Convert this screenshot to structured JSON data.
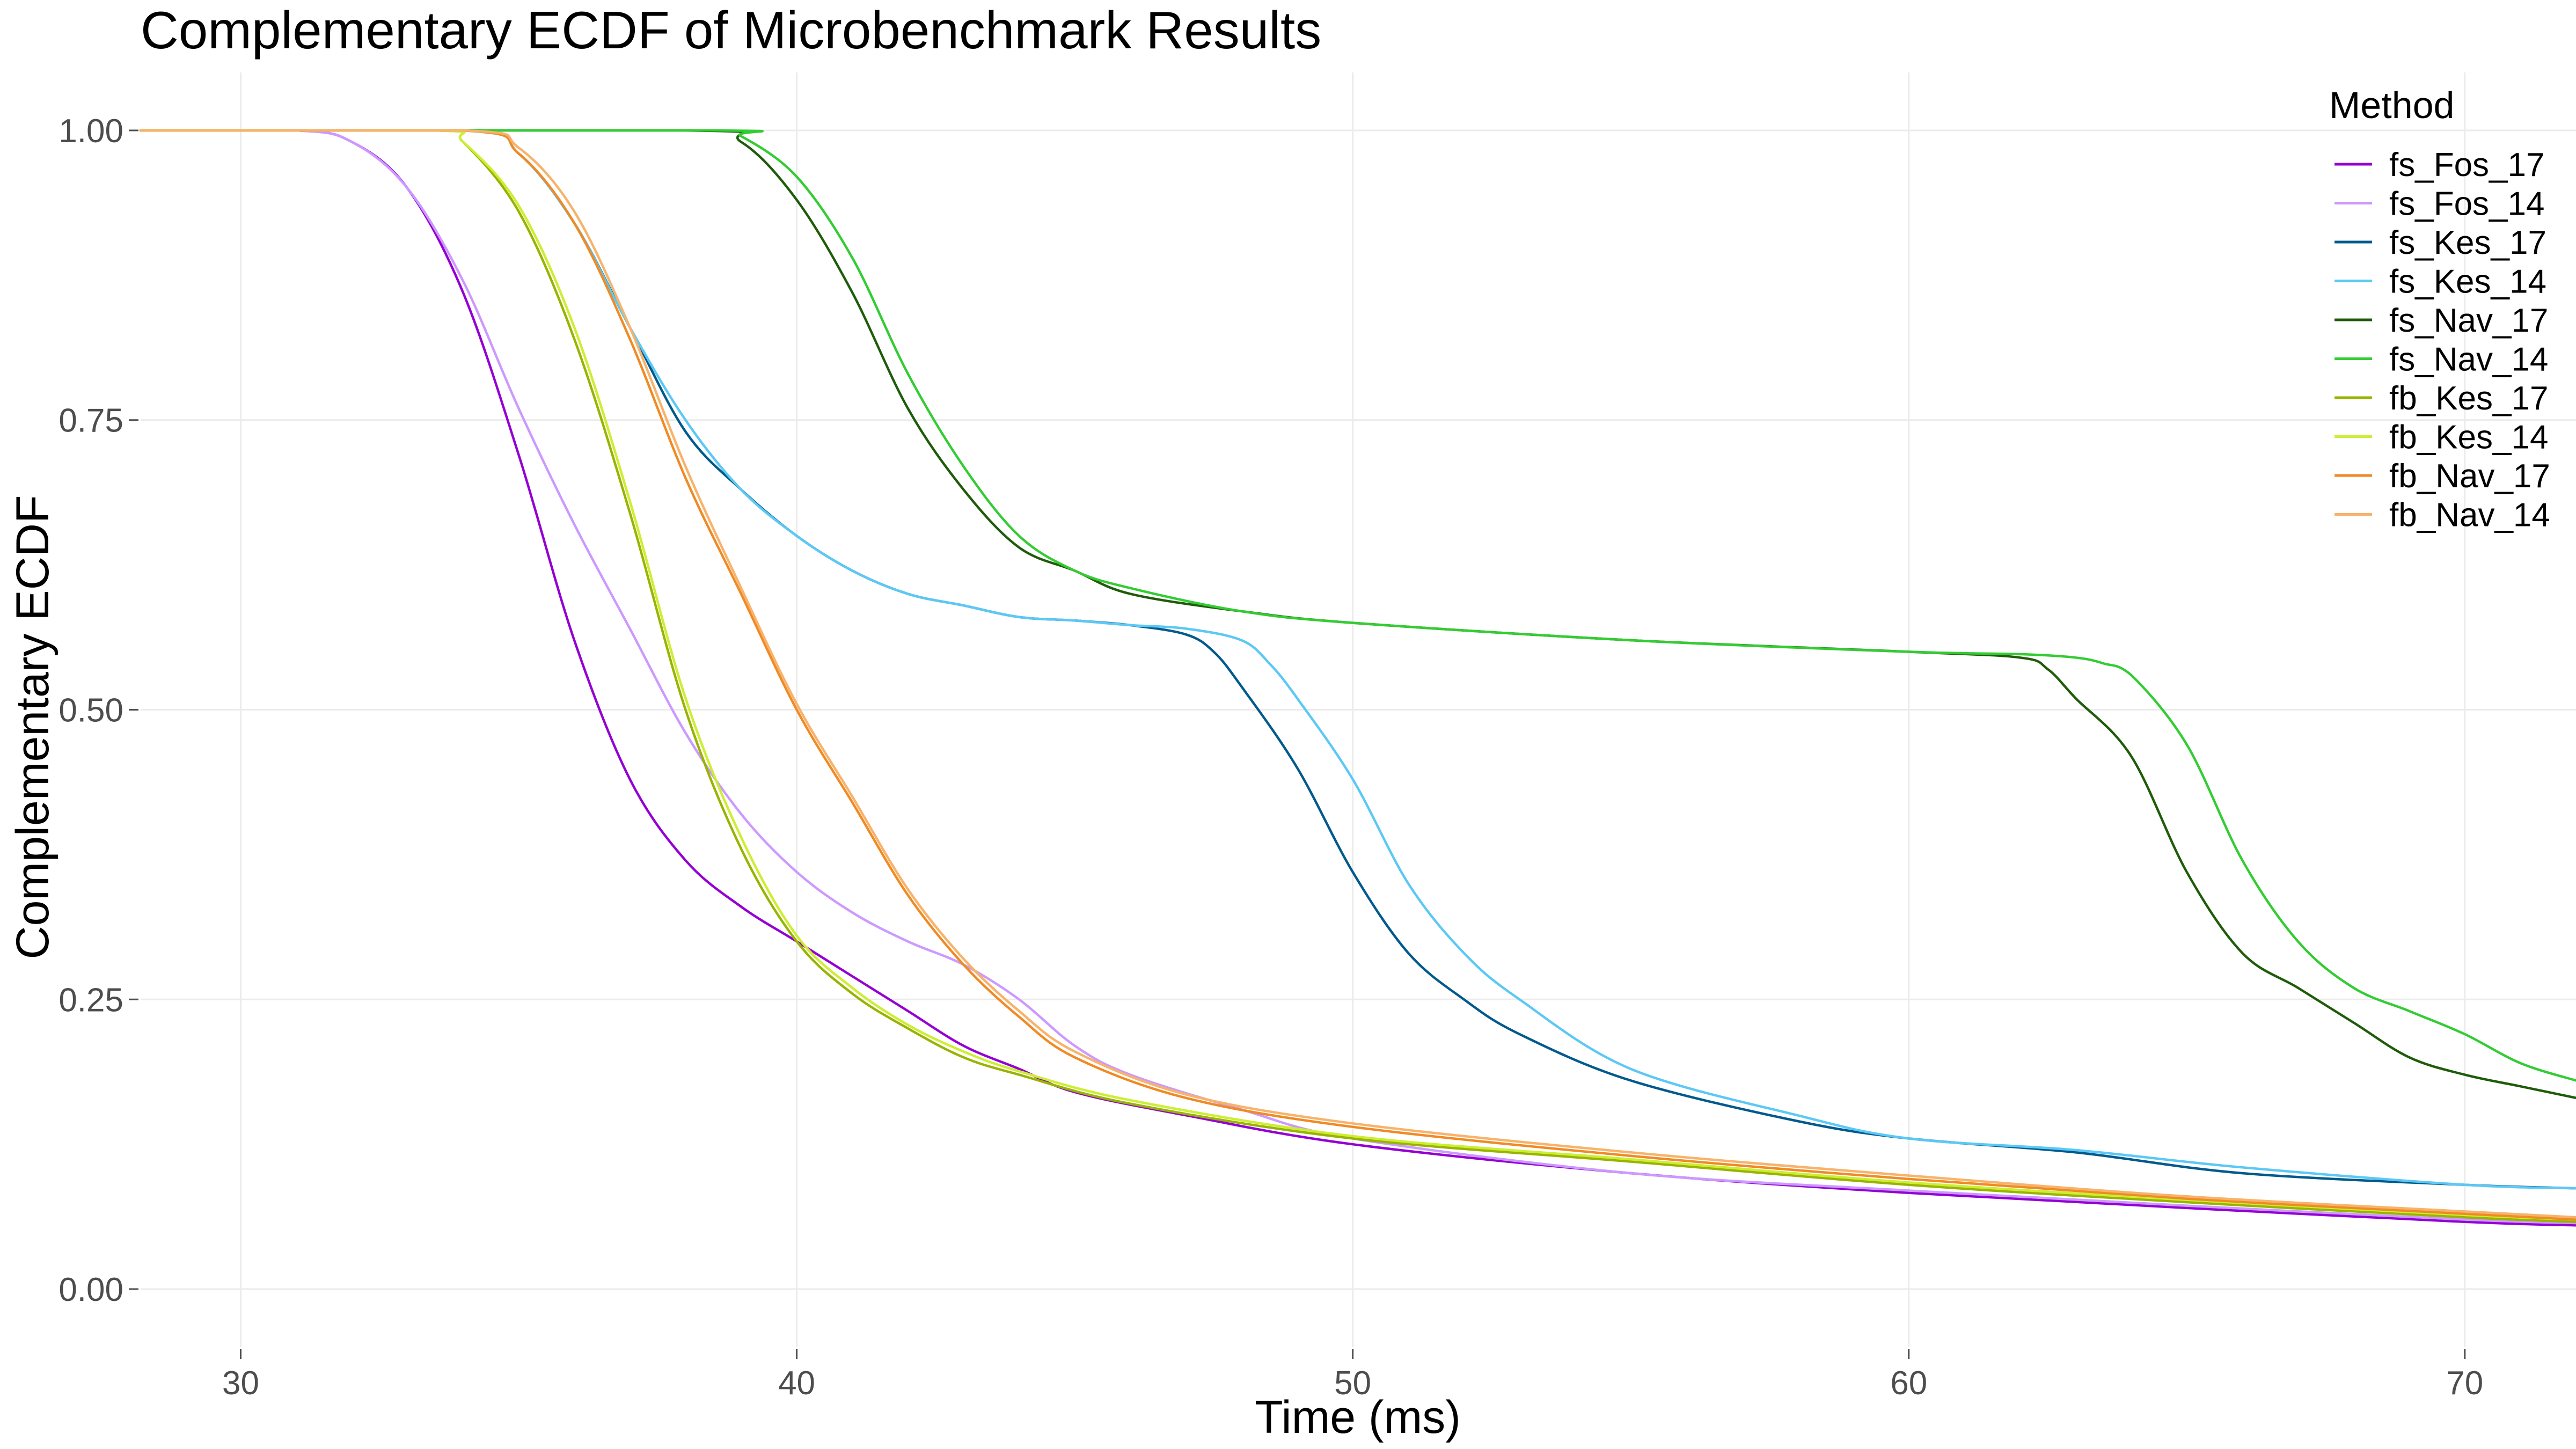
{
  "chart_data": {
    "type": "line",
    "title": "Complementary ECDF of Microbenchmark Results",
    "xlabel": "Time (ms)",
    "ylabel": "Complementary ECDF",
    "xlim": [
      28.2,
      72.0
    ],
    "ylim": [
      -0.05,
      1.05
    ],
    "x_ticks": [
      30,
      40,
      50,
      60,
      70
    ],
    "x_tick_labels": [
      "30",
      "40",
      "50",
      "60",
      "70"
    ],
    "y_ticks": [
      0,
      0.25,
      0.5,
      0.75,
      1.0
    ],
    "y_tick_labels": [
      "0.00",
      "0.25",
      "0.50",
      "0.75",
      "1.00"
    ],
    "grid": true,
    "legend": {
      "title": "Method",
      "position": "right"
    },
    "series": [
      {
        "name": "fs_Fos_17",
        "color": "#9400D3",
        "x": [
          28.2,
          31.0,
          32.0,
          33.0,
          34.0,
          35.0,
          36.0,
          37.0,
          38.0,
          39.0,
          40.0,
          41.0,
          42.0,
          43.0,
          44.0,
          45.0,
          47.0,
          50.0,
          55.0,
          60.0,
          65.0,
          70.0,
          72.0
        ],
        "y": [
          1.0,
          1.0,
          0.99,
          0.95,
          0.86,
          0.72,
          0.56,
          0.44,
          0.37,
          0.33,
          0.3,
          0.27,
          0.24,
          0.21,
          0.19,
          0.17,
          0.15,
          0.125,
          0.1,
          0.083,
          0.07,
          0.058,
          0.055
        ]
      },
      {
        "name": "fs_Fos_14",
        "color": "#CC99FF",
        "x": [
          28.2,
          31.0,
          32.0,
          33.0,
          34.0,
          35.0,
          36.0,
          37.0,
          38.0,
          39.0,
          40.0,
          41.0,
          42.0,
          43.0,
          44.0,
          45.0,
          46.0,
          48.0,
          50.0,
          55.0,
          60.0,
          65.0,
          70.0,
          72.0
        ],
        "y": [
          1.0,
          1.0,
          0.99,
          0.95,
          0.87,
          0.76,
          0.66,
          0.57,
          0.48,
          0.41,
          0.36,
          0.325,
          0.3,
          0.28,
          0.25,
          0.21,
          0.185,
          0.155,
          0.13,
          0.1,
          0.085,
          0.072,
          0.06,
          0.057
        ]
      },
      {
        "name": "fs_Kes_17",
        "color": "#005A8C",
        "x": [
          28.2,
          34.0,
          35.0,
          36.0,
          37.0,
          38.0,
          39.0,
          40.0,
          41.0,
          42.0,
          43.0,
          44.0,
          45.0,
          46.0,
          47.0,
          47.5,
          48.0,
          49.0,
          50.0,
          51.0,
          52.0,
          53.0,
          55.0,
          58.0,
          60.0,
          63.0,
          66.0,
          70.0,
          72.0
        ],
        "y": [
          1.0,
          1.0,
          0.98,
          0.92,
          0.83,
          0.74,
          0.69,
          0.65,
          0.62,
          0.6,
          0.59,
          0.58,
          0.577,
          0.573,
          0.565,
          0.55,
          0.52,
          0.45,
          0.36,
          0.29,
          0.25,
          0.22,
          0.18,
          0.145,
          0.13,
          0.118,
          0.1,
          0.09,
          0.087
        ]
      },
      {
        "name": "fs_Kes_14",
        "color": "#5BC8F5",
        "x": [
          28.2,
          34.0,
          35.0,
          36.0,
          37.0,
          38.0,
          39.0,
          40.0,
          41.0,
          42.0,
          43.0,
          44.0,
          45.0,
          46.0,
          47.0,
          48.0,
          48.5,
          49.0,
          50.0,
          51.0,
          52.0,
          53.0,
          55.0,
          58.0,
          60.0,
          63.0,
          66.0,
          70.0,
          72.0
        ],
        "y": [
          1.0,
          1.0,
          0.98,
          0.92,
          0.83,
          0.75,
          0.69,
          0.65,
          0.62,
          0.6,
          0.59,
          0.58,
          0.577,
          0.573,
          0.57,
          0.56,
          0.54,
          0.51,
          0.44,
          0.35,
          0.29,
          0.25,
          0.19,
          0.15,
          0.13,
          0.12,
          0.105,
          0.09,
          0.087
        ]
      },
      {
        "name": "fs_Nav_17",
        "color": "#1F5C0A",
        "x": [
          28.2,
          38.0,
          39.0,
          40.0,
          41.0,
          42.0,
          43.0,
          44.0,
          45.0,
          46.0,
          48.0,
          50.0,
          55.0,
          60.0,
          62.0,
          62.5,
          63.0,
          64.0,
          65.0,
          66.0,
          67.0,
          68.0,
          69.0,
          70.0,
          71.0,
          72.0
        ],
        "y": [
          1.0,
          1.0,
          0.99,
          0.94,
          0.86,
          0.76,
          0.69,
          0.64,
          0.62,
          0.6,
          0.585,
          0.575,
          0.56,
          0.55,
          0.545,
          0.535,
          0.51,
          0.46,
          0.36,
          0.29,
          0.26,
          0.23,
          0.2,
          0.185,
          0.175,
          0.165
        ]
      },
      {
        "name": "fs_Nav_14",
        "color": "#33CC33",
        "x": [
          28.2,
          38.5,
          39.0,
          40.0,
          41.0,
          42.0,
          43.0,
          44.0,
          45.0,
          46.0,
          48.0,
          50.0,
          55.0,
          60.0,
          62.0,
          63.0,
          63.5,
          64.0,
          65.0,
          66.0,
          67.0,
          68.0,
          69.0,
          70.0,
          71.0,
          72.0
        ],
        "y": [
          1.0,
          1.0,
          0.995,
          0.96,
          0.89,
          0.79,
          0.71,
          0.65,
          0.62,
          0.605,
          0.585,
          0.575,
          0.56,
          0.55,
          0.548,
          0.545,
          0.54,
          0.53,
          0.47,
          0.37,
          0.3,
          0.26,
          0.24,
          0.22,
          0.195,
          0.18
        ]
      },
      {
        "name": "fb_Kes_17",
        "color": "#99B300",
        "x": [
          28.2,
          33.5,
          34.0,
          35.0,
          36.0,
          37.0,
          38.0,
          39.0,
          40.0,
          41.0,
          42.0,
          43.0,
          44.0,
          46.0,
          50.0,
          55.0,
          60.0,
          65.0,
          70.0,
          72.0
        ],
        "y": [
          1.0,
          1.0,
          0.99,
          0.93,
          0.82,
          0.67,
          0.5,
          0.38,
          0.3,
          0.255,
          0.225,
          0.2,
          0.185,
          0.16,
          0.13,
          0.11,
          0.09,
          0.075,
          0.062,
          0.058
        ]
      },
      {
        "name": "fb_Kes_14",
        "color": "#CCEE33",
        "x": [
          28.2,
          33.5,
          34.0,
          35.0,
          36.0,
          37.0,
          38.0,
          39.0,
          40.0,
          41.0,
          42.0,
          43.0,
          44.0,
          46.0,
          50.0,
          55.0,
          60.0,
          65.0,
          70.0,
          72.0
        ],
        "y": [
          1.0,
          1.0,
          0.99,
          0.935,
          0.83,
          0.68,
          0.51,
          0.39,
          0.305,
          0.26,
          0.228,
          0.205,
          0.188,
          0.163,
          0.132,
          0.112,
          0.092,
          0.077,
          0.064,
          0.06
        ]
      },
      {
        "name": "fb_Nav_17",
        "color": "#F08A24",
        "x": [
          28.2,
          34.0,
          35.0,
          36.0,
          37.0,
          38.0,
          39.0,
          40.0,
          41.0,
          42.0,
          43.0,
          44.0,
          45.0,
          47.0,
          50.0,
          55.0,
          60.0,
          65.0,
          70.0,
          72.0
        ],
        "y": [
          1.0,
          1.0,
          0.98,
          0.92,
          0.82,
          0.7,
          0.6,
          0.5,
          0.42,
          0.34,
          0.28,
          0.235,
          0.2,
          0.165,
          0.14,
          0.115,
          0.095,
          0.078,
          0.065,
          0.06
        ]
      },
      {
        "name": "fb_Nav_14",
        "color": "#F7B36B",
        "x": [
          28.2,
          34.0,
          35.0,
          36.0,
          37.0,
          38.0,
          39.0,
          40.0,
          41.0,
          42.0,
          43.0,
          44.0,
          45.0,
          47.0,
          50.0,
          55.0,
          60.0,
          65.0,
          70.0,
          72.0
        ],
        "y": [
          1.0,
          1.0,
          0.985,
          0.93,
          0.83,
          0.71,
          0.605,
          0.505,
          0.425,
          0.345,
          0.285,
          0.24,
          0.205,
          0.168,
          0.143,
          0.118,
          0.098,
          0.08,
          0.067,
          0.062
        ]
      }
    ]
  }
}
